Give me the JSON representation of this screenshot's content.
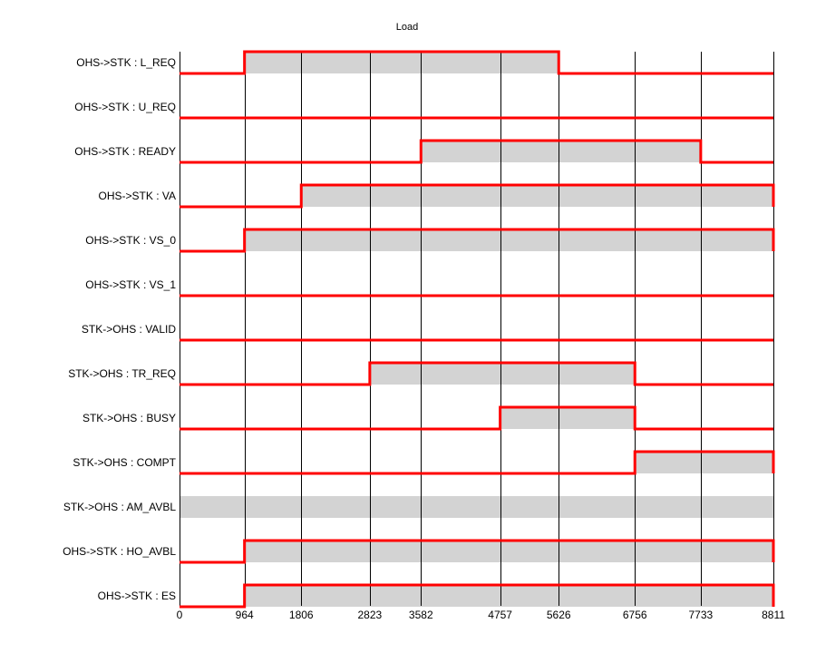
{
  "chart_data": {
    "type": "timing",
    "title": "Load",
    "x_range": [
      0,
      8811
    ],
    "x_ticks": [
      0,
      964,
      1806,
      2823,
      3582,
      4757,
      5626,
      6756,
      7733,
      8811
    ],
    "grid": "vertical",
    "signals": [
      {
        "name": "OHS->STK : L_REQ",
        "high": [
          [
            964,
            5626
          ]
        ]
      },
      {
        "name": "OHS->STK : U_REQ",
        "high": []
      },
      {
        "name": "OHS->STK : READY",
        "high": [
          [
            3582,
            7733
          ]
        ]
      },
      {
        "name": "OHS->STK : VA",
        "high": [
          [
            1806,
            8811
          ]
        ]
      },
      {
        "name": "OHS->STK : VS_0",
        "high": [
          [
            964,
            8811
          ]
        ]
      },
      {
        "name": "OHS->STK : VS_1",
        "high": []
      },
      {
        "name": "STK->OHS : VALID",
        "high": []
      },
      {
        "name": "STK->OHS : TR_REQ",
        "high": [
          [
            2823,
            6756
          ]
        ]
      },
      {
        "name": "STK->OHS : BUSY",
        "high": [
          [
            4757,
            6756
          ]
        ]
      },
      {
        "name": "STK->OHS : COMPT",
        "high": [
          [
            6756,
            8811
          ]
        ]
      },
      {
        "name": "STK->OHS : AM_AVBL",
        "high": [
          [
            0,
            8811
          ]
        ]
      },
      {
        "name": "OHS->STK : HO_AVBL",
        "high": [
          [
            964,
            8811
          ]
        ]
      },
      {
        "name": "OHS->STK : ES",
        "high": [
          [
            964,
            8811
          ]
        ]
      }
    ],
    "trace_color": "#ff0000",
    "fill_color": "#d3d3d3"
  }
}
